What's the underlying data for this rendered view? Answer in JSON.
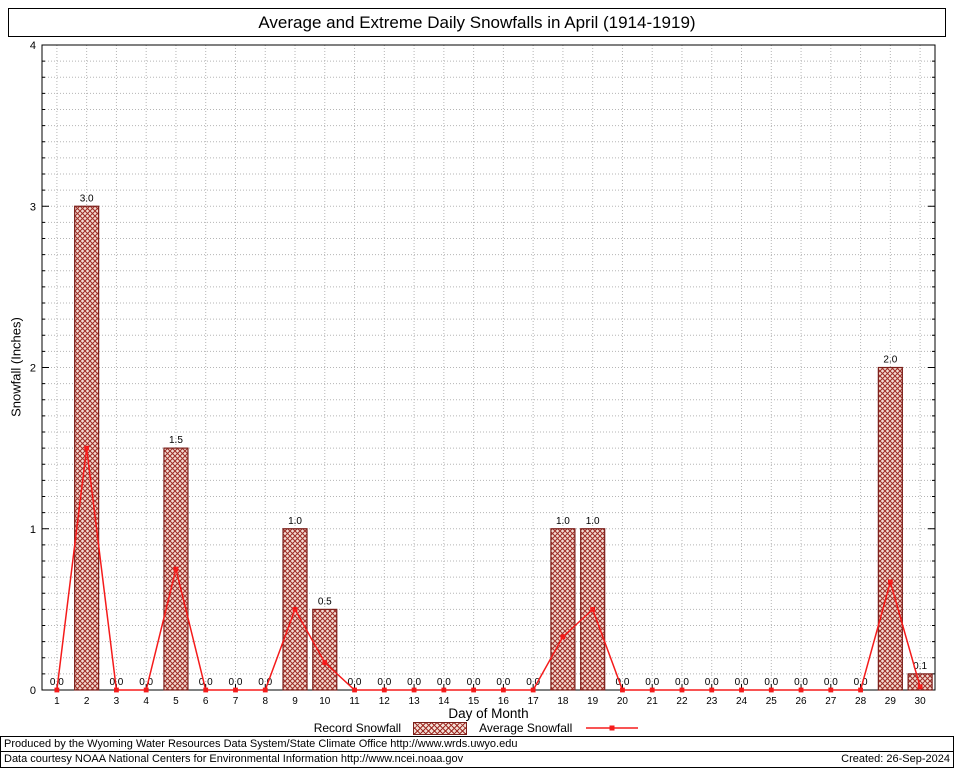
{
  "title": "Average and Extreme Daily Snowfalls in April (1914-1919)",
  "chart_data": {
    "type": "bar",
    "x": [
      1,
      2,
      3,
      4,
      5,
      6,
      7,
      8,
      9,
      10,
      11,
      12,
      13,
      14,
      15,
      16,
      17,
      18,
      19,
      20,
      21,
      22,
      23,
      24,
      25,
      26,
      27,
      28,
      29,
      30
    ],
    "xlabel": "Day of Month",
    "ylabel": "Snowfall (Inches)",
    "ylim": [
      0,
      4
    ],
    "y_major_ticks": [
      0,
      1,
      2,
      3,
      4
    ],
    "grid": "dotted; vertical line at each day, horizontal every 0.1 inch",
    "legend_position": "bottom-center",
    "series": [
      {
        "name": "Record Snowfall",
        "type": "bar",
        "values": [
          0.0,
          3.0,
          0.0,
          0.0,
          1.5,
          0.0,
          0.0,
          0.0,
          1.0,
          0.5,
          0.0,
          0.0,
          0.0,
          0.0,
          0.0,
          0.0,
          0.0,
          1.0,
          1.0,
          0.0,
          0.0,
          0.0,
          0.0,
          0.0,
          0.0,
          0.0,
          0.0,
          0.0,
          2.0,
          0.1
        ],
        "labels": [
          "0.0",
          "3.0",
          "0.0",
          "0.0",
          "1.5",
          "0.0",
          "0.0",
          "0.0",
          "1.0",
          "0.5",
          "0.0",
          "0.0",
          "0.0",
          "0.0",
          "0.0",
          "0.0",
          "0.0",
          "1.0",
          "1.0",
          "0.0",
          "0.0",
          "0.0",
          "0.0",
          "0.0",
          "0.0",
          "0.0",
          "0.0",
          "0.0",
          "2.0",
          "0.1"
        ]
      },
      {
        "name": "Average Snowfall",
        "type": "line",
        "values": [
          0,
          1.5,
          0,
          0,
          0.75,
          0,
          0,
          0,
          0.5,
          0.17,
          0,
          0,
          0,
          0,
          0,
          0,
          0,
          0.33,
          0.5,
          0,
          0,
          0,
          0,
          0,
          0,
          0,
          0,
          0,
          0.67,
          0.02
        ]
      }
    ]
  },
  "colors": {
    "bar_hatch": "#9e2b25",
    "bar_background": "#f2ddd3",
    "bar_border": "#7a1f1a",
    "average_line": "#f51b1b",
    "grid": "#b5b5b5",
    "axis": "#000000"
  },
  "footer": {
    "line1": "Produced by the Wyoming Water Resources Data System/State Climate Office http://www.wrds.uwyo.edu",
    "line2": "Data courtesy NOAA National Centers for Environmental Information http://www.ncei.noaa.gov",
    "created": "Created: 26-Sep-2024"
  }
}
